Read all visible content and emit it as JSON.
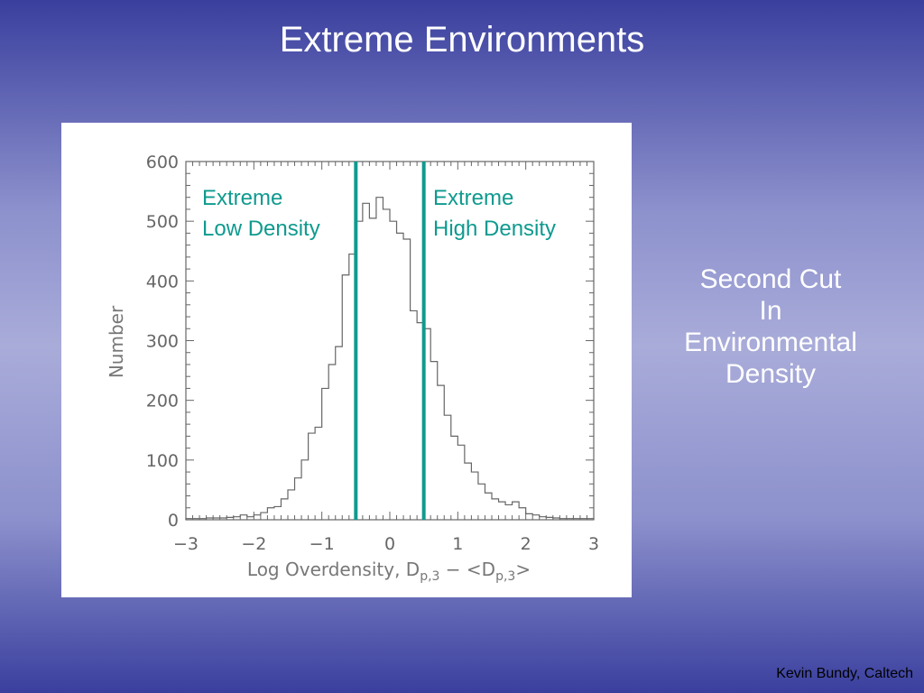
{
  "slide": {
    "title": "Extreme Environments",
    "side_note": [
      "Second Cut",
      "In",
      "Environmental",
      "Density"
    ],
    "credit": "Kevin Bundy, Caltech"
  },
  "colors": {
    "cut_lines": "#0f9a8f",
    "histogram": "#666666",
    "axes": "#666666"
  },
  "chart_data": {
    "type": "histogram",
    "xlabel": "Log Overdensity, D",
    "xlabel_parts": {
      "prefix": "Log Overdensity, D",
      "sub1": "p,3",
      "middle": " − <D",
      "sub2": "p,3",
      "suffix": ">"
    },
    "ylabel": "Number",
    "xlim": [
      -3,
      3
    ],
    "ylim": [
      0,
      600
    ],
    "xticks": [
      "−3",
      "−2",
      "−1",
      "0",
      "1",
      "2",
      "3"
    ],
    "xtick_values": [
      -3,
      -2,
      -1,
      0,
      1,
      2,
      3
    ],
    "yticks": [
      0,
      100,
      200,
      300,
      400,
      500,
      600
    ],
    "bin_edges": [
      -3.0,
      -2.9,
      -2.8,
      -2.7,
      -2.6,
      -2.5,
      -2.4,
      -2.3,
      -2.2,
      -2.1,
      -2.0,
      -1.9,
      -1.8,
      -1.7,
      -1.6,
      -1.5,
      -1.4,
      -1.3,
      -1.2,
      -1.1,
      -1.0,
      -0.9,
      -0.8,
      -0.7,
      -0.6,
      -0.5,
      -0.4,
      -0.3,
      -0.2,
      -0.1,
      0.0,
      0.1,
      0.2,
      0.3,
      0.4,
      0.5,
      0.6,
      0.7,
      0.8,
      0.9,
      1.0,
      1.1,
      1.2,
      1.3,
      1.4,
      1.5,
      1.6,
      1.7,
      1.8,
      1.9,
      2.0,
      2.1,
      2.2,
      2.3,
      2.4,
      2.5,
      2.6,
      2.7,
      2.8,
      2.9,
      3.0
    ],
    "counts": [
      2,
      2,
      2,
      3,
      3,
      3,
      4,
      5,
      8,
      5,
      8,
      12,
      20,
      22,
      35,
      50,
      70,
      100,
      145,
      155,
      220,
      260,
      290,
      410,
      445,
      500,
      530,
      505,
      540,
      520,
      500,
      480,
      470,
      350,
      330,
      320,
      265,
      225,
      175,
      140,
      125,
      95,
      80,
      60,
      45,
      35,
      30,
      25,
      30,
      20,
      10,
      8,
      5,
      4,
      3,
      2,
      2,
      2,
      2,
      2
    ],
    "cuts": [
      {
        "x": -0.5,
        "label": [
          "Extreme",
          "Low Density"
        ]
      },
      {
        "x": 0.5,
        "label": [
          "Extreme",
          "High Density"
        ]
      }
    ]
  }
}
